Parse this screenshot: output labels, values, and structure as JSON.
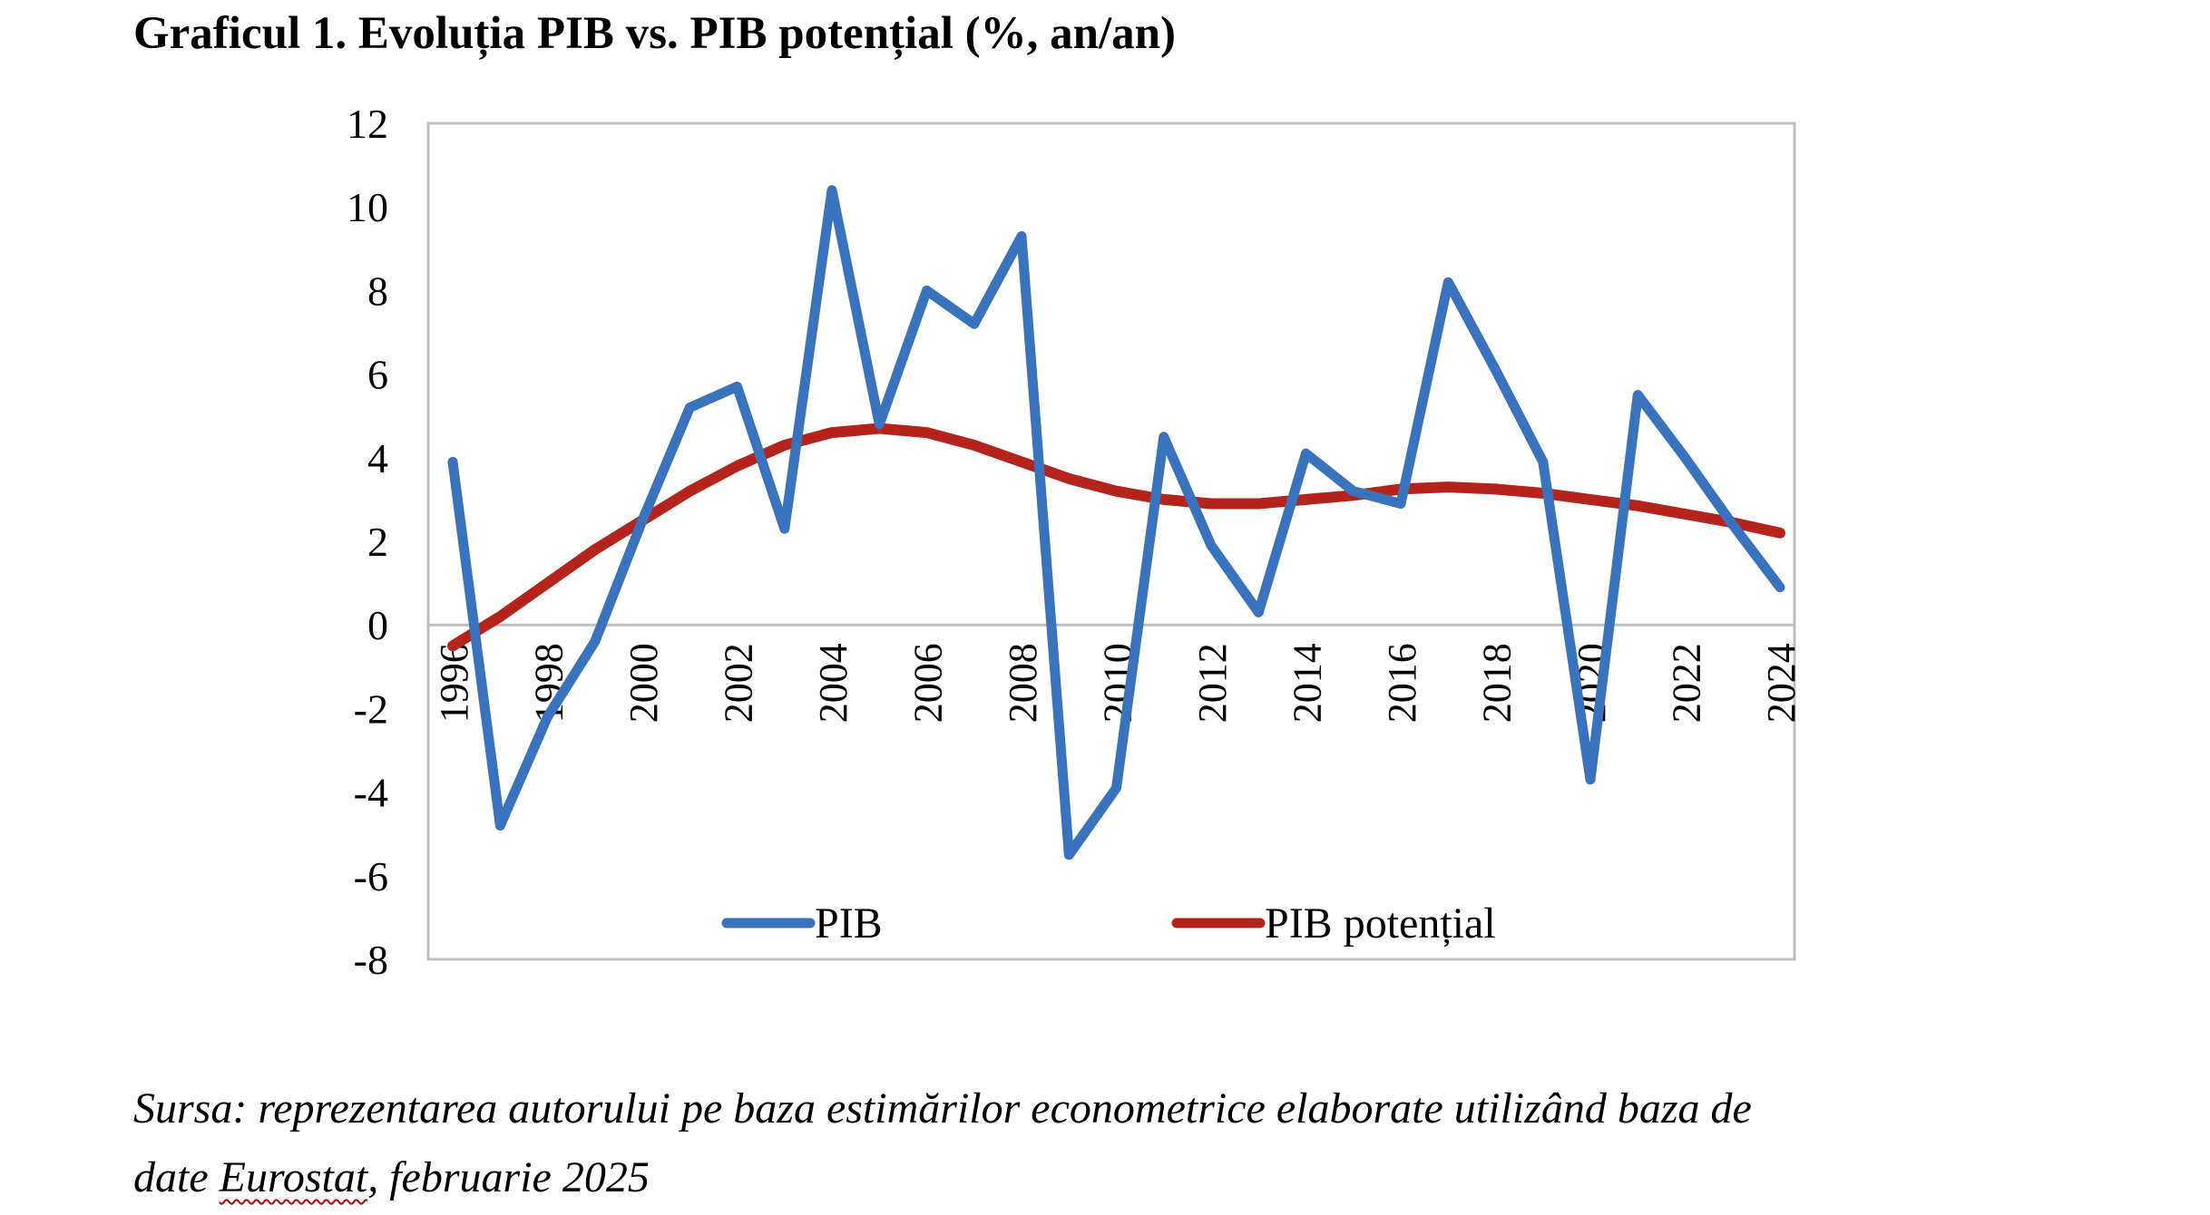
{
  "title": "Graficul 1. Evoluția PIB vs. PIB potențial (%, an/an)",
  "source": {
    "line1": "Sursa: reprezentarea autorului pe baza estimărilor econometrice elaborate utilizând baza de",
    "line2_pre": "date ",
    "line2_link": "Eurostat",
    "line2_post": ", februarie 2025"
  },
  "chart_data": {
    "type": "line",
    "title": "",
    "xlabel": "",
    "ylabel": "",
    "ylim": [
      -8,
      12
    ],
    "yticks": [
      12,
      10,
      8,
      6,
      4,
      2,
      0,
      -2,
      -4,
      -6,
      -8
    ],
    "grid": false,
    "legend_position": "bottom-inside",
    "x": [
      1996,
      1997,
      1998,
      1999,
      2000,
      2001,
      2002,
      2003,
      2004,
      2005,
      2006,
      2007,
      2008,
      2009,
      2010,
      2011,
      2012,
      2013,
      2014,
      2015,
      2016,
      2017,
      2018,
      2019,
      2020,
      2021,
      2022,
      2023,
      2024
    ],
    "xtick_labels": [
      "1996",
      "1998",
      "2000",
      "2002",
      "2004",
      "2006",
      "2008",
      "2010",
      "2012",
      "2014",
      "2016",
      "2018",
      "2020",
      "2022",
      "2024"
    ],
    "series": [
      {
        "name": "PIB",
        "color": "#3a73bd",
        "values": [
          3.9,
          -4.8,
          -2.2,
          -0.4,
          2.5,
          5.2,
          5.7,
          2.3,
          10.4,
          4.8,
          8.0,
          7.2,
          9.3,
          -5.5,
          -3.9,
          4.5,
          1.9,
          0.3,
          4.1,
          3.2,
          2.9,
          8.2,
          6.1,
          3.9,
          -3.7,
          5.5,
          4.0,
          2.4,
          0.9
        ]
      },
      {
        "name": "PIB potențial",
        "color": "#b5241c",
        "values": [
          -0.5,
          0.2,
          1.0,
          1.8,
          2.5,
          3.2,
          3.8,
          4.3,
          4.6,
          4.7,
          4.6,
          4.3,
          3.9,
          3.5,
          3.2,
          3.0,
          2.9,
          2.9,
          3.0,
          3.1,
          3.25,
          3.3,
          3.25,
          3.15,
          3.0,
          2.85,
          2.65,
          2.45,
          2.2
        ]
      }
    ]
  }
}
